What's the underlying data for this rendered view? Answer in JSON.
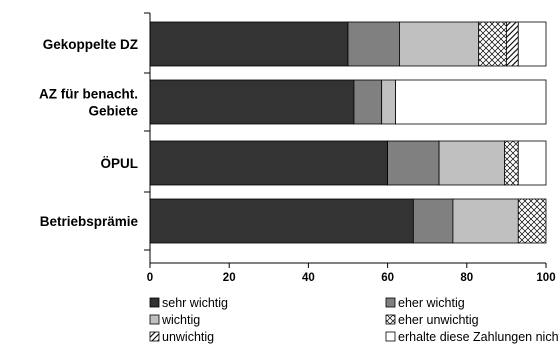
{
  "chart_data": {
    "type": "bar",
    "orientation": "horizontal",
    "stacked": true,
    "title": "",
    "xlabel": "",
    "ylabel": "",
    "xlim": [
      0,
      100
    ],
    "x_ticks": [
      0,
      20,
      40,
      60,
      80,
      100
    ],
    "categories": [
      "Gekoppelte DZ",
      "AZ für benacht. Gebiete",
      "ÖPUL",
      "Betriebsprämie"
    ],
    "series": [
      {
        "name": "sehr wichtig",
        "values": [
          50,
          51.5,
          60,
          66.5
        ],
        "color": "#333333",
        "pattern": "solid"
      },
      {
        "name": "eher wichtig",
        "values": [
          13,
          7,
          13,
          10
        ],
        "color": "#808080",
        "pattern": "solid"
      },
      {
        "name": "wichtig",
        "values": [
          20,
          3.5,
          16.5,
          16.5
        ],
        "color": "#c0c0c0",
        "pattern": "solid"
      },
      {
        "name": "eher unwichtig",
        "values": [
          7,
          0,
          3.5,
          7
        ],
        "color": "#ffffff",
        "pattern": "checker"
      },
      {
        "name": "unwichtig",
        "values": [
          3,
          0,
          0,
          0
        ],
        "color": "#ffffff",
        "pattern": "diagonal"
      },
      {
        "name": "erhalte diese Zahlungen nicht",
        "values": [
          7,
          38,
          7,
          0
        ],
        "color": "#ffffff",
        "pattern": "solid"
      }
    ],
    "legend_position": "bottom",
    "grid": false
  }
}
